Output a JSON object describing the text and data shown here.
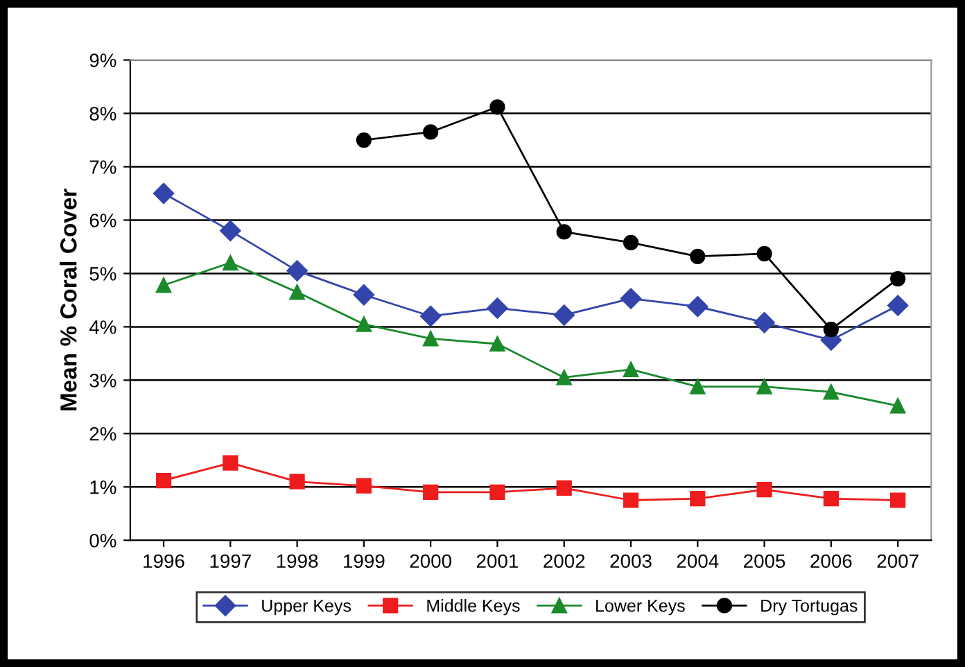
{
  "chart_data": {
    "type": "line",
    "ylabel": "Mean % Coral Cover",
    "categories": [
      "1996",
      "1997",
      "1998",
      "1999",
      "2000",
      "2001",
      "2002",
      "2003",
      "2004",
      "2005",
      "2006",
      "2007"
    ],
    "series": [
      {
        "name": "Upper Keys",
        "color": "#3344aa",
        "marker": "diamond",
        "values": [
          6.5,
          5.8,
          5.05,
          4.6,
          4.2,
          4.35,
          4.22,
          4.53,
          4.38,
          4.08,
          3.75,
          4.4
        ]
      },
      {
        "name": "Middle Keys",
        "color": "#ee1c1c",
        "marker": "square",
        "values": [
          1.12,
          1.45,
          1.1,
          1.02,
          0.9,
          0.9,
          0.98,
          0.75,
          0.78,
          0.95,
          0.78,
          0.75
        ]
      },
      {
        "name": "Lower Keys",
        "color": "#1a8a2a",
        "marker": "triangle",
        "values": [
          4.78,
          5.2,
          4.65,
          4.05,
          3.78,
          3.68,
          3.05,
          3.2,
          2.88,
          2.88,
          2.78,
          2.52
        ]
      },
      {
        "name": "Dry Tortugas",
        "color": "#000000",
        "marker": "circle",
        "values": [
          null,
          null,
          null,
          7.5,
          7.65,
          8.12,
          5.78,
          5.58,
          5.32,
          5.37,
          3.95,
          4.9
        ]
      }
    ],
    "ylim": [
      0,
      9
    ],
    "yticks": [
      {
        "value": 0,
        "label": "0%"
      },
      {
        "value": 1,
        "label": "1%"
      },
      {
        "value": 2,
        "label": "2%"
      },
      {
        "value": 3,
        "label": "3%"
      },
      {
        "value": 4,
        "label": "4%"
      },
      {
        "value": 5,
        "label": "5%"
      },
      {
        "value": 6,
        "label": "6%"
      },
      {
        "value": 7,
        "label": "7%"
      },
      {
        "value": 8,
        "label": "8%"
      },
      {
        "value": 9,
        "label": "9%"
      }
    ],
    "grid": "y",
    "legend": "bottom",
    "line_style": "solid"
  }
}
